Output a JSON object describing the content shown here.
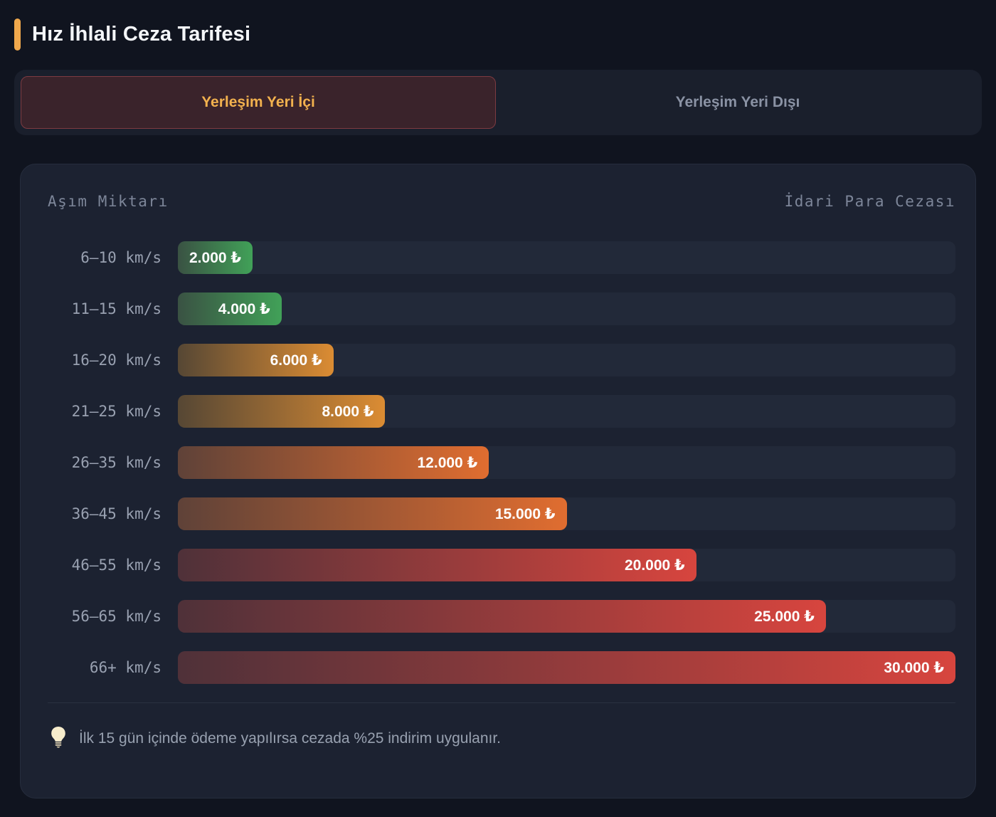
{
  "page": {
    "title": "Hız İhlali Ceza Tarifesi"
  },
  "tabs": [
    {
      "label": "Yerleşim Yeri İçi",
      "active": true
    },
    {
      "label": "Yerleşim Yeri Dışı",
      "active": false
    }
  ],
  "colors": {
    "page_bg": "#10141f",
    "card_bg": "#1c2231",
    "track_bg": "#222939",
    "accent_amber": "#f0a84c",
    "active_tab_bg": "#3a232b",
    "active_tab_border": "#7d3b42",
    "active_tab_text": "#f2b14e",
    "inactive_tab_text": "#8a92a4"
  },
  "chart_data": {
    "type": "bar",
    "orientation": "horizontal",
    "title": "Hız İhlali Ceza Tarifesi",
    "active_tab": "Yerleşim Yeri İçi",
    "columns": {
      "left": "Aşım Miktarı",
      "right": "İdari Para Cezası"
    },
    "max_value": 30000,
    "unit": "₺",
    "legend": "none",
    "grid": false,
    "rows": [
      {
        "range": "6–10 km/s",
        "value": 2000,
        "fine_label": "2.000 ₺",
        "gradient": [
          "#3a5243",
          "#41a158"
        ]
      },
      {
        "range": "11–15 km/s",
        "value": 4000,
        "fine_label": "4.000 ₺",
        "gradient": [
          "#3a5243",
          "#41a158"
        ]
      },
      {
        "range": "16–20 km/s",
        "value": 6000,
        "fine_label": "6.000 ₺",
        "gradient": [
          "#564734",
          "#db8c33"
        ]
      },
      {
        "range": "21–25 km/s",
        "value": 8000,
        "fine_label": "8.000 ₺",
        "gradient": [
          "#564734",
          "#db8c33"
        ]
      },
      {
        "range": "26–35 km/s",
        "value": 12000,
        "fine_label": "12.000 ₺",
        "gradient": [
          "#5f4238",
          "#e06d30"
        ]
      },
      {
        "range": "36–45 km/s",
        "value": 15000,
        "fine_label": "15.000 ₺",
        "gradient": [
          "#5f4238",
          "#e06d30"
        ]
      },
      {
        "range": "46–55 km/s",
        "value": 20000,
        "fine_label": "20.000 ₺",
        "gradient": [
          "#4f3139",
          "#d7453e"
        ]
      },
      {
        "range": "56–65 km/s",
        "value": 25000,
        "fine_label": "25.000 ₺",
        "gradient": [
          "#4f3139",
          "#d7453e"
        ]
      },
      {
        "range": "66+ km/s",
        "value": 30000,
        "fine_label": "30.000 ₺",
        "gradient": [
          "#4f3139",
          "#d7453e"
        ]
      }
    ],
    "note": "İlk 15 gün içinde ödeme yapılırsa cezada %25 indirim uygulanır."
  }
}
